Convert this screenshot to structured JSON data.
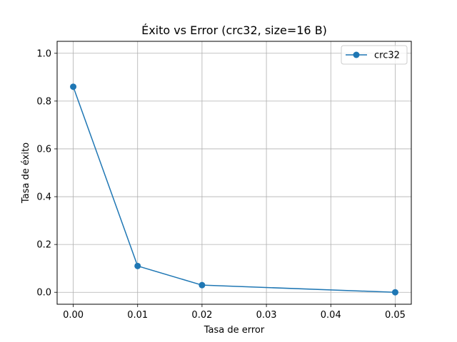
{
  "chart_data": {
    "type": "line",
    "title": "Éxito vs Error (crc32, size=16 B)",
    "xlabel": "Tasa de error",
    "ylabel": "Tasa de éxito",
    "xlim": [
      -0.0025,
      0.0525
    ],
    "ylim": [
      -0.05,
      1.05
    ],
    "xticks": [
      0.0,
      0.01,
      0.02,
      0.03,
      0.04,
      0.05
    ],
    "xtick_labels": [
      "0.00",
      "0.01",
      "0.02",
      "0.03",
      "0.04",
      "0.05"
    ],
    "yticks": [
      0.0,
      0.2,
      0.4,
      0.6,
      0.8,
      1.0
    ],
    "ytick_labels": [
      "0.0",
      "0.2",
      "0.4",
      "0.6",
      "0.8",
      "1.0"
    ],
    "grid": true,
    "legend_position": "top-right",
    "series": [
      {
        "name": "crc32",
        "color": "#1f77b4",
        "marker": "circle",
        "x": [
          0.0,
          0.01,
          0.02,
          0.05
        ],
        "y": [
          0.86,
          0.11,
          0.03,
          0.0
        ]
      }
    ]
  }
}
